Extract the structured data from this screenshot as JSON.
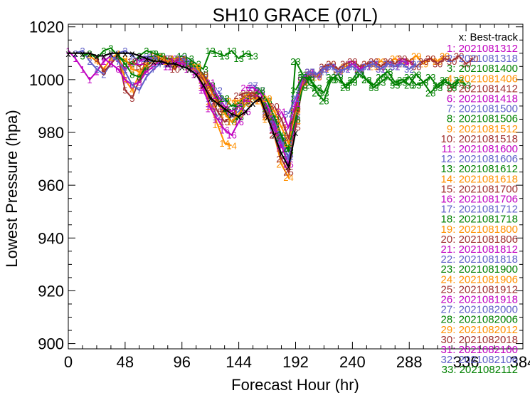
{
  "chart_data": {
    "type": "line",
    "title": "SH10  GRACE (07L)",
    "xlabel": "Forecast Hour (hr)",
    "ylabel": "Lowest Pressure (hpa)",
    "xlim": [
      0,
      384
    ],
    "ylim": [
      898,
      1021
    ],
    "xticks": [
      "0",
      "48",
      "96",
      "144",
      "192",
      "240",
      "288",
      "336",
      "384"
    ],
    "yticks": [
      "900",
      "920",
      "940",
      "960",
      "980",
      "1000",
      "1020"
    ],
    "grid": false,
    "legend_position": "right",
    "best_track": {
      "name": "x: Best-track",
      "color": "#000000",
      "x": [
        0,
        6,
        12,
        18,
        24,
        30,
        36,
        42,
        48,
        54,
        60,
        66,
        72,
        78,
        84,
        90,
        96,
        102,
        108,
        114,
        120,
        126,
        132,
        138,
        144,
        150,
        156,
        162,
        168,
        174,
        180,
        186,
        192
      ],
      "y": [
        1010,
        1010,
        1010,
        1010,
        1009,
        1009,
        1010,
        1010,
        1010,
        1010,
        1009,
        1008,
        1007,
        1007,
        1006,
        1006,
        1005,
        1004,
        1002,
        998,
        993,
        991,
        989,
        987,
        986,
        988,
        991,
        993,
        986,
        979,
        972,
        967,
        980
      ]
    },
    "series": [
      {
        "name": "1: 2021081312",
        "color": "#c000c0",
        "x": [
          0,
          6,
          12,
          18,
          24,
          30,
          36,
          42,
          48,
          54,
          60
        ],
        "y": [
          1011,
          1008,
          1004,
          1000,
          1003,
          1007,
          1009,
          1008,
          1004,
          1006,
          1009
        ]
      },
      {
        "name": "2: 2021081318",
        "color": "#6060c8",
        "x": [
          6,
          12,
          18,
          24,
          30,
          36,
          42,
          48,
          54,
          60,
          66
        ],
        "y": [
          1010,
          1011,
          1007,
          1004,
          1002,
          1006,
          1010,
          1011,
          1009,
          1007,
          1009
        ]
      },
      {
        "name": "3: 2021081400",
        "color": "#008000",
        "x": [
          12,
          18,
          24,
          30,
          36,
          42,
          48,
          54,
          60,
          66,
          72
        ],
        "y": [
          1009,
          1010,
          1008,
          1011,
          1012,
          1009,
          1007,
          1006,
          1009,
          1011,
          1010
        ]
      },
      {
        "name": "4: 2021081406",
        "color": "#ff9000",
        "x": [
          18,
          24,
          30,
          36,
          42,
          48,
          54,
          60,
          66,
          72,
          78
        ],
        "y": [
          1009,
          1007,
          1004,
          1008,
          1010,
          1000,
          996,
          1002,
          1005,
          1008,
          1009
        ]
      },
      {
        "name": "5: 2021081412",
        "color": "#a03030",
        "x": [
          24,
          30,
          36,
          42,
          48,
          54,
          60,
          66,
          72,
          78,
          84
        ],
        "y": [
          1008,
          1003,
          1006,
          1009,
          996,
          993,
          1000,
          1004,
          1006,
          1007,
          1008
        ]
      },
      {
        "name": "6: 2021081418",
        "color": "#c000c0",
        "x": [
          30,
          36,
          42,
          48,
          54,
          60,
          66,
          72,
          78,
          84,
          90
        ],
        "y": [
          1008,
          1006,
          1004,
          1000,
          998,
          999,
          1003,
          1005,
          1007,
          1006,
          1008
        ]
      },
      {
        "name": "7: 2021081500",
        "color": "#6060c8",
        "x": [
          36,
          42,
          48,
          54,
          60,
          66,
          72,
          78,
          84,
          90,
          96
        ],
        "y": [
          1009,
          1007,
          1003,
          998,
          996,
          1001,
          1004,
          1006,
          1008,
          1007,
          1008
        ]
      },
      {
        "name": "8: 2021081506",
        "color": "#008000",
        "x": [
          42,
          48,
          54,
          60,
          66,
          72,
          78,
          84,
          90,
          96,
          102
        ],
        "y": [
          1009,
          1006,
          1002,
          1001,
          1005,
          1008,
          1009,
          1007,
          1006,
          1008,
          1006
        ]
      },
      {
        "name": "9: 2021081512",
        "color": "#ff9000",
        "x": [
          48,
          54,
          60,
          66,
          72,
          78,
          84,
          90,
          96,
          102,
          108
        ],
        "y": [
          1008,
          1004,
          1003,
          1006,
          1009,
          1008,
          1007,
          1005,
          1008,
          1006,
          1005
        ]
      },
      {
        "name": "10: 2021081518",
        "color": "#a03030",
        "x": [
          54,
          60,
          66,
          72,
          78,
          84,
          90,
          96,
          102,
          108,
          114
        ],
        "y": [
          1007,
          1005,
          1007,
          1009,
          1008,
          1006,
          1004,
          1007,
          1005,
          1003,
          1000
        ]
      },
      {
        "name": "11: 2021081600",
        "color": "#c000c0",
        "x": [
          60,
          66,
          72,
          78,
          84,
          90,
          96,
          102,
          108,
          114,
          120
        ],
        "y": [
          1007,
          1008,
          1009,
          1007,
          1005,
          1007,
          1008,
          1006,
          1003,
          996,
          990
        ]
      },
      {
        "name": "12: 2021081606",
        "color": "#6060c8",
        "x": [
          66,
          72,
          78,
          84,
          90,
          96,
          102,
          108,
          114,
          120,
          126
        ],
        "y": [
          1008,
          1009,
          1007,
          1006,
          1008,
          1009,
          1007,
          1004,
          998,
          991,
          986
        ]
      },
      {
        "name": "13: 2021081612",
        "color": "#008000",
        "x": [
          72,
          78,
          84,
          90,
          96,
          102,
          108,
          114,
          120,
          126,
          132,
          138,
          144,
          150,
          156
        ],
        "y": [
          1010,
          1009,
          1008,
          1008,
          1009,
          1008,
          1006,
          1004,
          1011,
          1010,
          1009,
          1011,
          1008,
          1010,
          1009
        ]
      },
      {
        "name": "14: 2021081618",
        "color": "#ff9000",
        "x": [
          78,
          84,
          90,
          96,
          102,
          108,
          114,
          120,
          126,
          132,
          138
        ],
        "y": [
          1008,
          1007,
          1008,
          1008,
          1006,
          1004,
          998,
          990,
          983,
          976,
          975
        ]
      },
      {
        "name": "15: 2021081700",
        "color": "#a03030",
        "x": [
          84,
          90,
          96,
          102,
          108,
          114,
          120,
          126,
          132,
          138,
          144
        ],
        "y": [
          1008,
          1007,
          1008,
          1006,
          1004,
          1000,
          994,
          988,
          984,
          986,
          990
        ]
      },
      {
        "name": "16: 2021081706",
        "color": "#c000c0",
        "x": [
          90,
          96,
          102,
          108,
          114,
          120,
          126,
          132,
          138,
          144,
          150
        ],
        "y": [
          1007,
          1006,
          1004,
          1002,
          997,
          989,
          985,
          981,
          979,
          984,
          988
        ]
      },
      {
        "name": "17: 2021081712",
        "color": "#6060c8",
        "x": [
          96,
          102,
          108,
          114,
          120,
          126,
          132,
          138,
          144,
          150,
          156
        ],
        "y": [
          1008,
          1006,
          1004,
          1001,
          997,
          992,
          988,
          986,
          988,
          991,
          993
        ]
      },
      {
        "name": "18: 2021081718",
        "color": "#008000",
        "x": [
          102,
          108,
          114,
          120,
          126,
          132,
          138,
          144,
          150,
          156,
          162
        ],
        "y": [
          1006,
          1005,
          1002,
          998,
          993,
          988,
          984,
          986,
          991,
          993,
          995
        ]
      },
      {
        "name": "19: 2021081800",
        "color": "#ff9000",
        "x": [
          108,
          114,
          120,
          126,
          132,
          138,
          144,
          150,
          156,
          162,
          168
        ],
        "y": [
          1005,
          1001,
          996,
          991,
          987,
          984,
          987,
          991,
          993,
          992,
          985
        ]
      },
      {
        "name": "20: 2021081806",
        "color": "#a03030",
        "x": [
          114,
          120,
          126,
          132,
          138,
          144,
          150,
          156,
          162,
          168,
          174
        ],
        "y": [
          1002,
          997,
          992,
          989,
          988,
          990,
          992,
          994,
          992,
          986,
          979
        ]
      },
      {
        "name": "21: 2021081812",
        "color": "#c000c0",
        "x": [
          120,
          126,
          132,
          138,
          144,
          150,
          156,
          162,
          168,
          174,
          180
        ],
        "y": [
          999,
          994,
          990,
          988,
          990,
          993,
          995,
          993,
          988,
          981,
          974
        ]
      },
      {
        "name": "22: 2021081818",
        "color": "#6060c8",
        "x": [
          126,
          132,
          138,
          144,
          150,
          156,
          162,
          168,
          174,
          180,
          186
        ],
        "y": [
          996,
          992,
          990,
          991,
          994,
          995,
          993,
          988,
          982,
          976,
          971
        ]
      },
      {
        "name": "23: 2021081900",
        "color": "#008000",
        "x": [
          132,
          138,
          144,
          150,
          156,
          162,
          168,
          174,
          180,
          186,
          192,
          198,
          204,
          210
        ],
        "y": [
          993,
          990,
          991,
          994,
          995,
          993,
          989,
          984,
          978,
          973,
          1007,
          1002,
          998,
          997
        ]
      },
      {
        "name": "24: 2021081906",
        "color": "#ff9000",
        "x": [
          138,
          144,
          150,
          156,
          162,
          168,
          174,
          180,
          186,
          192,
          198
        ],
        "y": [
          992,
          992,
          994,
          995,
          992,
          986,
          979,
          968,
          963,
          984,
          999
        ]
      },
      {
        "name": "25: 2021081912",
        "color": "#a03030",
        "x": [
          144,
          150,
          156,
          162,
          168,
          174,
          180,
          186,
          192,
          198,
          204
        ],
        "y": [
          994,
          995,
          995,
          993,
          987,
          979,
          970,
          965,
          982,
          998,
          1001
        ]
      },
      {
        "name": "26: 2021081918",
        "color": "#c000c0",
        "x": [
          150,
          156,
          162,
          168,
          174,
          180,
          186,
          192,
          198,
          204,
          210
        ],
        "y": [
          997,
          997,
          995,
          990,
          983,
          975,
          968,
          985,
          999,
          1002,
          1001
        ]
      },
      {
        "name": "27: 2021082000",
        "color": "#6060c8",
        "x": [
          156,
          162,
          168,
          174,
          180,
          186,
          192,
          198,
          204,
          210,
          216
        ],
        "y": [
          998,
          996,
          992,
          985,
          977,
          970,
          986,
          1000,
          1003,
          1001,
          1003
        ]
      },
      {
        "name": "28: 2021082006",
        "color": "#008000",
        "x": [
          162,
          168,
          174,
          180,
          186,
          192,
          198,
          204,
          210,
          216,
          222,
          228,
          234,
          240,
          246,
          252,
          258,
          264,
          270,
          276,
          282,
          288,
          294,
          300,
          306,
          312,
          318,
          324,
          330
        ],
        "y": [
          996,
          992,
          986,
          979,
          974,
          985,
          997,
          1001,
          995,
          992,
          1000,
          1002,
          997,
          1000,
          1004,
          1000,
          998,
          1001,
          1003,
          999,
          1000,
          998,
          1002,
          999,
          995,
          998,
          1000,
          997,
          999
        ]
      },
      {
        "name": "29: 2021082012",
        "color": "#ff9000",
        "x": [
          168,
          174,
          180,
          186,
          192,
          198,
          204,
          210,
          216,
          222,
          228,
          234,
          240,
          246,
          252,
          258,
          264,
          270,
          276,
          282,
          288,
          294,
          300,
          306,
          312,
          318
        ],
        "y": [
          993,
          988,
          982,
          976,
          988,
          999,
          1003,
          1001,
          1004,
          1006,
          1003,
          1005,
          1006,
          1004,
          1006,
          1005,
          1007,
          1006,
          1008,
          1006,
          1007,
          1009,
          1006,
          1008,
          1007,
          1009
        ]
      },
      {
        "name": "30: 2021082018",
        "color": "#a03030",
        "x": [
          174,
          180,
          186,
          192,
          198,
          204,
          210,
          216,
          222,
          228,
          234,
          240,
          246,
          252,
          258,
          264,
          270,
          276,
          282,
          288,
          294,
          300,
          306,
          312,
          318,
          324,
          330,
          336,
          342
        ],
        "y": [
          990,
          985,
          978,
          989,
          1000,
          1003,
          1002,
          1005,
          1006,
          1004,
          1006,
          1007,
          1005,
          1006,
          1007,
          1005,
          1007,
          1006,
          1008,
          1007,
          1005,
          1007,
          1008,
          1006,
          1008,
          1007,
          1009,
          1006,
          1008
        ]
      },
      {
        "name": "31: 2021082100",
        "color": "#c000c0",
        "x": [
          180,
          186,
          192,
          198,
          204,
          210,
          216,
          222,
          228,
          234,
          240,
          246,
          252,
          258,
          264,
          270,
          276,
          282,
          288
        ],
        "y": [
          988,
          982,
          991,
          1000,
          1003,
          1002,
          1004,
          1005,
          1003,
          1004,
          1006,
          1004,
          1005,
          1006,
          1004,
          1006,
          1005,
          1007,
          1006
        ]
      },
      {
        "name": "32: 2021082106",
        "color": "#6060c8",
        "x": [
          186,
          192,
          198,
          204,
          210,
          216,
          222,
          228,
          234,
          240,
          246,
          252,
          258,
          264,
          270,
          276,
          282,
          288,
          294
        ],
        "y": [
          987,
          993,
          1001,
          1003,
          1002,
          1004,
          1005,
          1003,
          1004,
          1005,
          1003,
          1005,
          1006,
          1004,
          1006,
          1005,
          1006,
          1004,
          1006
        ]
      },
      {
        "name": "33: 2021082112",
        "color": "#008000",
        "x": [
          192,
          198,
          204,
          210,
          216,
          222,
          228,
          234,
          240,
          246,
          252,
          258,
          264,
          270,
          276,
          282,
          288,
          294,
          300,
          306,
          312,
          318,
          324,
          330,
          336
        ],
        "y": [
          996,
          1001,
          1000,
          997,
          995,
          1001,
          1000,
          998,
          999,
          1002,
          1000,
          997,
          999,
          1001,
          998,
          999,
          1001,
          998,
          999,
          1001,
          997,
          999,
          998,
          1000,
          998
        ]
      }
    ]
  }
}
